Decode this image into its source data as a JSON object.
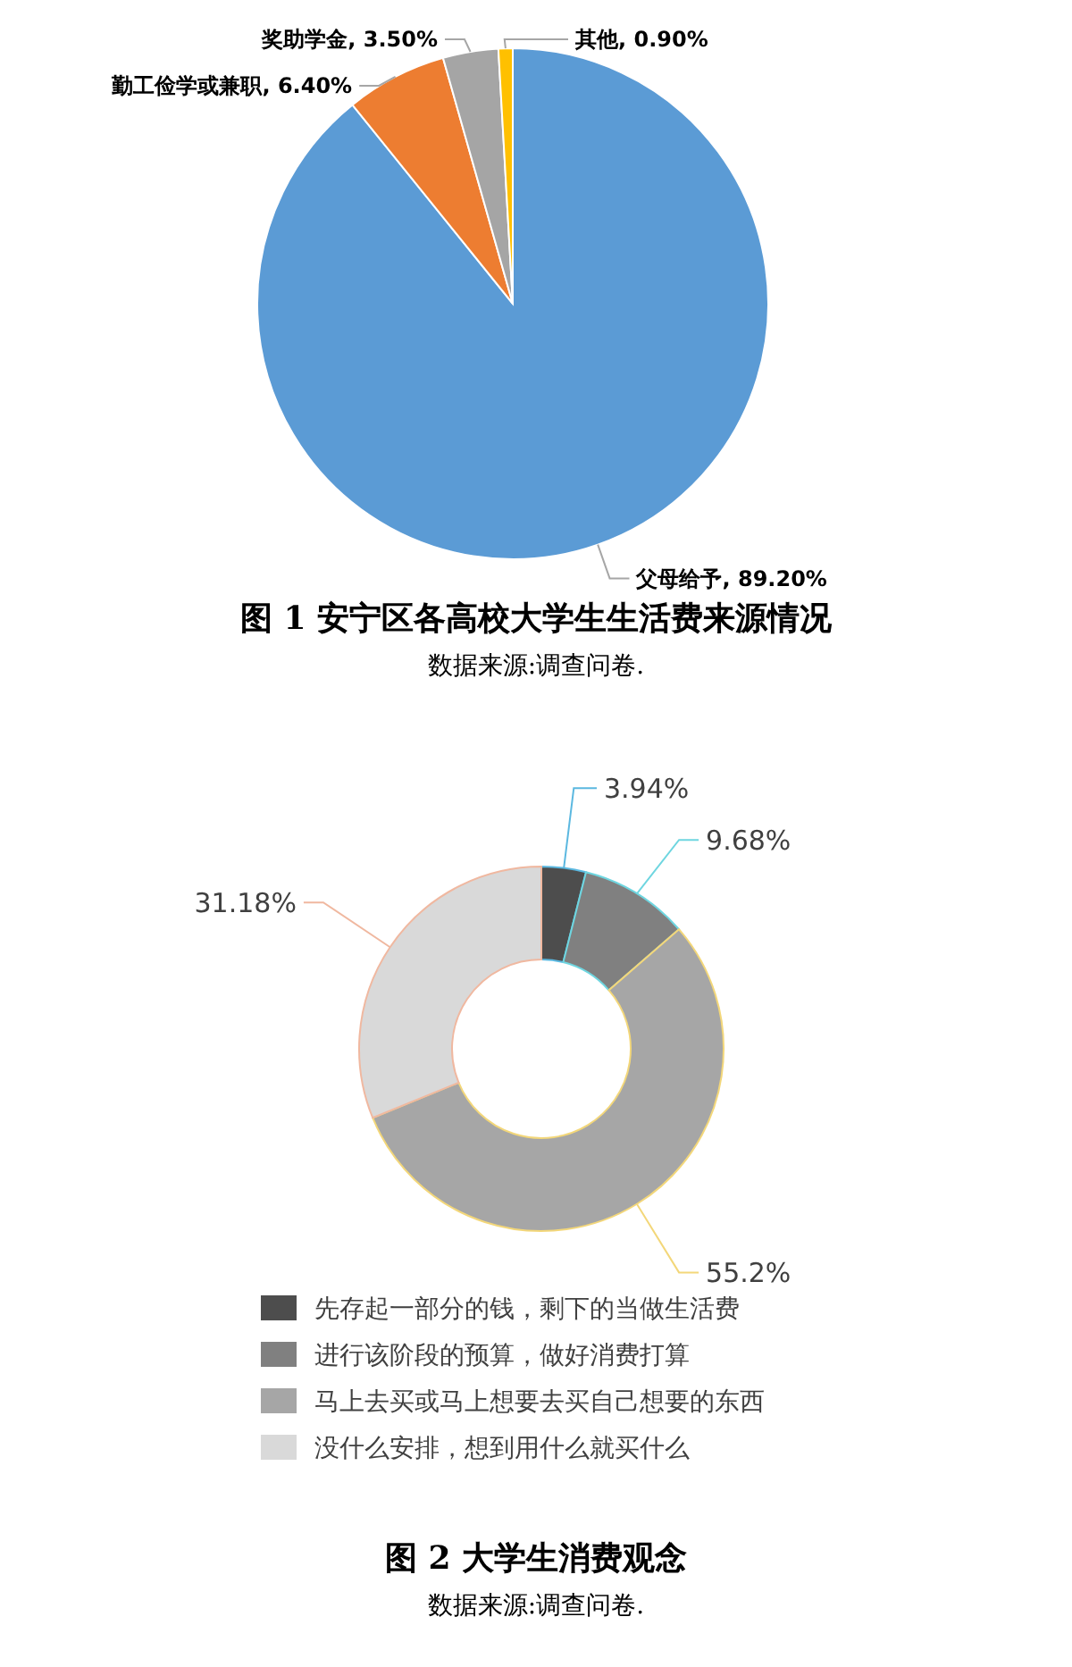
{
  "chart_data": [
    {
      "type": "pie",
      "title": "图 1  安宁区各高校大学生生活费来源情况",
      "annotations": [
        "数据来源:调查问卷."
      ],
      "categories": [
        "父母给予",
        "勤工俭学或兼职",
        "奖助学金",
        "其他"
      ],
      "values": [
        89.2,
        6.4,
        3.5,
        0.9
      ],
      "value_labels": [
        "89.20%",
        "6.40%",
        "3.50%",
        "0.90%"
      ],
      "colors": [
        "#5b9bd5",
        "#ed7d31",
        "#a5a5a5",
        "#ffc000"
      ]
    },
    {
      "type": "donut",
      "title": "图 2  大学生消费观念",
      "annotations": [
        "数据来源:调查问卷."
      ],
      "categories": [
        "先存起一部分的钱，剩下的当做生活费",
        "进行该阶段的预算，做好消费打算",
        "马上去买或马上想要去买自己想要的东西",
        "没什么安排，想到用什么就买什么"
      ],
      "values": [
        3.94,
        9.68,
        55.2,
        31.18
      ],
      "value_labels": [
        "3.94%",
        "9.68%",
        "55.2%",
        "31.18%"
      ],
      "colors": [
        "#4d4d4d",
        "#808080",
        "#a6a6a6",
        "#d9d9d9"
      ],
      "legend": "bottom"
    }
  ]
}
